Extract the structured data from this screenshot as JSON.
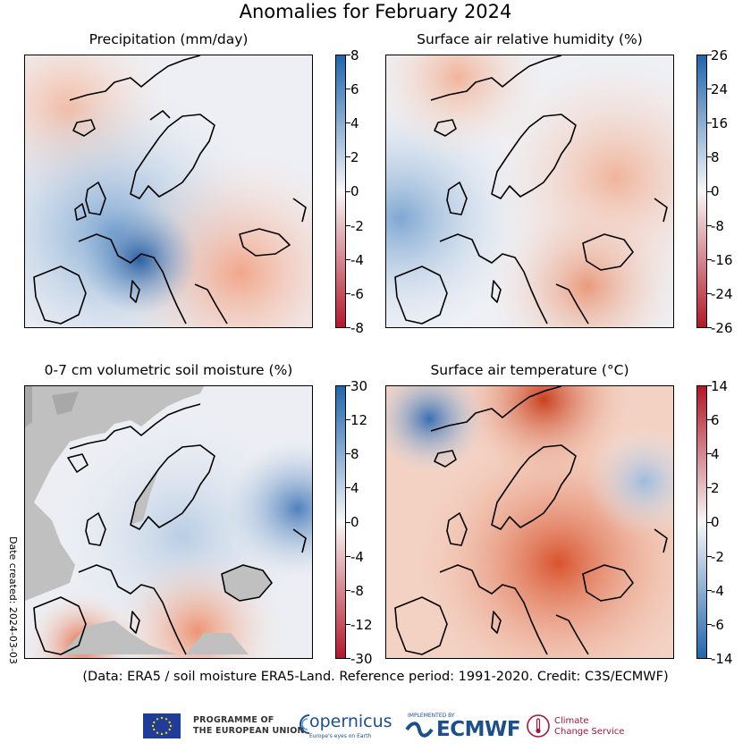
{
  "title": "Anomalies for February 2024",
  "panels": [
    {
      "title": "Precipitation (mm/day)",
      "colorbar": {
        "ticks": [
          "8",
          "6",
          "4",
          "2",
          "0",
          "-2",
          "-4",
          "-6",
          "-8"
        ],
        "min": -8,
        "max": 8,
        "scheme": "red-white-blue",
        "colors": {
          "low": "#b2182b",
          "mid": "#f7f7f7",
          "high": "#2166ac"
        }
      }
    },
    {
      "title": "Surface air relative humidity (%)",
      "colorbar": {
        "ticks": [
          "26",
          "24",
          "16",
          "8",
          "0",
          "-8",
          "-16",
          "-24",
          "-26"
        ],
        "min": -26,
        "max": 26,
        "scheme": "red-white-blue",
        "colors": {
          "low": "#b2182b",
          "mid": "#f7f7f7",
          "high": "#2166ac"
        }
      }
    },
    {
      "title": "0-7 cm volumetric soil moisture (%)",
      "colorbar": {
        "ticks": [
          "30",
          "12",
          "8",
          "4",
          "0",
          "-4",
          "-8",
          "-12",
          "-30"
        ],
        "min": -30,
        "max": 30,
        "scheme": "red-white-blue",
        "colors": {
          "low": "#b2182b",
          "mid": "#f7f7f7",
          "high": "#2166ac",
          "masked": "#c0c0c0"
        }
      }
    },
    {
      "title": "Surface air temperature (°C)",
      "colorbar": {
        "ticks": [
          "14",
          "6",
          "4",
          "2",
          "0",
          "-2",
          "-4",
          "-6",
          "-14"
        ],
        "min": -14,
        "max": 14,
        "scheme": "blue-white-red",
        "colors": {
          "low": "#2166ac",
          "mid": "#f7f7f7",
          "high": "#b2182b"
        }
      }
    }
  ],
  "date_created": "Date created: 2024-03-03",
  "credit": "(Data: ERA5 / soil moisture ERA5-Land.  Reference period: 1991-2020.  Credit: C3S/ECMWF)",
  "logos": {
    "eu": "PROGRAMME OF\nTHE EUROPEAN UNION",
    "eu_line1": "PROGRAMME OF",
    "eu_line2": "THE EUROPEAN UNION",
    "copernicus": "opernicus",
    "copernicus_sub": "Europe's eyes on Earth",
    "ecmwf_small": "IMPLEMENTED BY",
    "ecmwf": "ECMWF",
    "c3s_line1": "Climate",
    "c3s_line2": "Change Service"
  }
}
